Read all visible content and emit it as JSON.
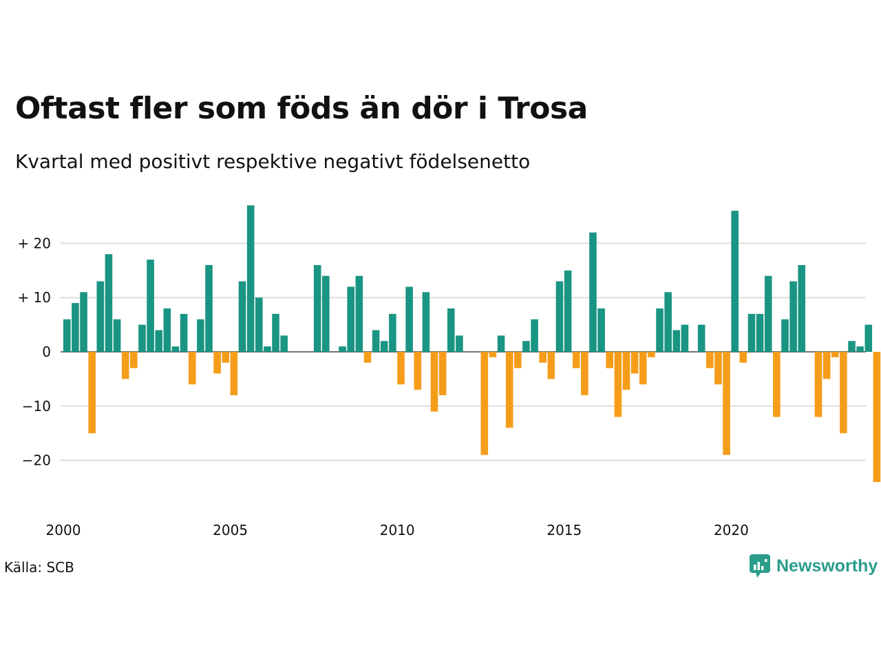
{
  "header": {
    "title": "Oftast fler som föds än dör i Trosa",
    "subtitle": "Kvartal med positivt respektive negativt födelsenetto"
  },
  "footer": {
    "source": "Källa: SCB",
    "brand": "Newsworthy"
  },
  "colors": {
    "positive": "#1a9583",
    "negative": "#f59d1b",
    "grid": "#dddddd",
    "zero_line": "#222222",
    "brand": "#2a9d8a"
  },
  "chart_data": {
    "type": "bar",
    "title": "Oftast fler som föds än dör i Trosa",
    "subtitle": "Kvartal med positivt respektive negativt födelsenetto",
    "x_start": "2000 Q1",
    "x_ticks": [
      "2000",
      "2005",
      "2010",
      "2015",
      "2020"
    ],
    "y_ticks": [
      "−20",
      "−10",
      "0",
      "+ 10",
      "+ 20"
    ],
    "y_tick_values": [
      -20,
      -10,
      0,
      10,
      20
    ],
    "ylim": [
      -26,
      28
    ],
    "grid": true,
    "values": [
      6,
      9,
      11,
      -15,
      13,
      18,
      6,
      -5,
      -3,
      5,
      17,
      4,
      8,
      1,
      7,
      -6,
      6,
      16,
      -4,
      -2,
      -8,
      13,
      27,
      10,
      1,
      7,
      3,
      0,
      0,
      0,
      16,
      14,
      0,
      1,
      12,
      14,
      -2,
      4,
      2,
      7,
      -6,
      12,
      -7,
      11,
      -11,
      -8,
      8,
      3,
      0,
      0,
      -19,
      -1,
      3,
      -14,
      -3,
      2,
      6,
      -2,
      -5,
      13,
      15,
      -3,
      -8,
      22,
      8,
      -3,
      -12,
      -7,
      -4,
      -6,
      -1,
      8,
      11,
      4,
      5,
      0,
      5,
      -3,
      -6,
      -19,
      26,
      -2,
      7,
      7,
      14,
      -12,
      6,
      13,
      16,
      0,
      -12,
      -5,
      -1,
      -15,
      2,
      1,
      5,
      -24
    ]
  }
}
